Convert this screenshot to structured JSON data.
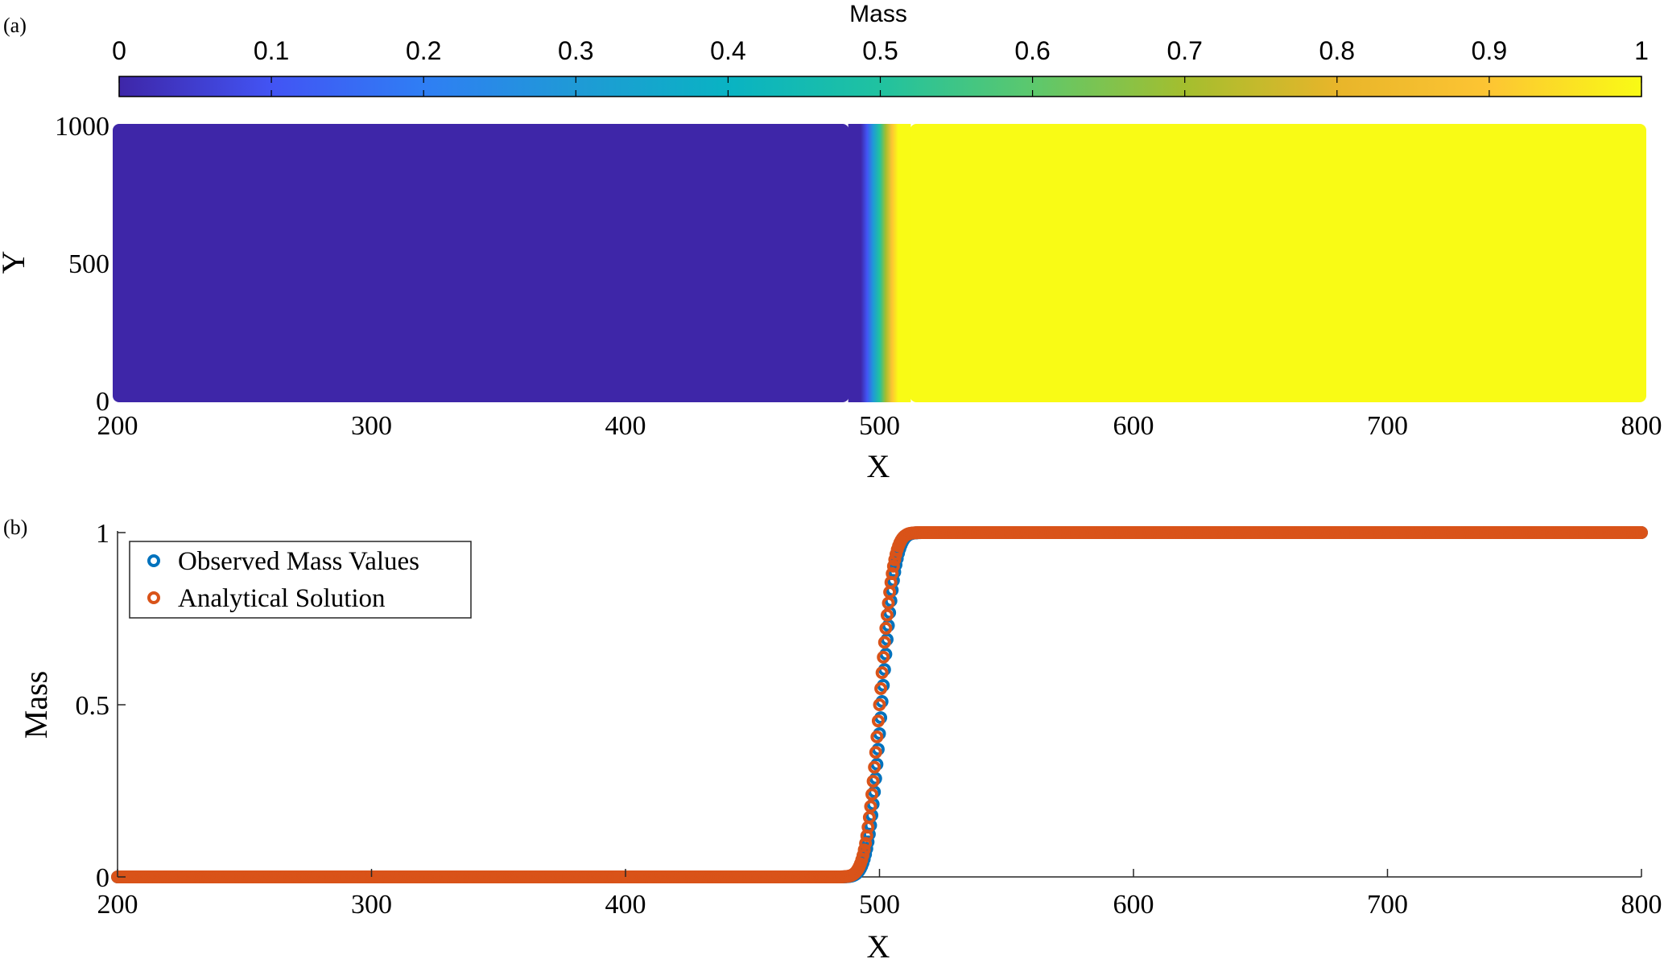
{
  "panels": {
    "a": {
      "label": "(a)",
      "colorbar": {
        "title": "Mass",
        "ticks": [
          "0",
          "0.1",
          "0.2",
          "0.3",
          "0.4",
          "0.5",
          "0.6",
          "0.7",
          "0.8",
          "0.9",
          "1"
        ],
        "range": [
          0,
          1
        ],
        "colormap": [
          "#3e26a8",
          "#4254f4",
          "#2f7ef4",
          "#1f9ad6",
          "#09b3c3",
          "#20c2a0",
          "#5cc86d",
          "#a4be2e",
          "#e8b52a",
          "#fdc533",
          "#f9fb15"
        ]
      },
      "xlabel": "X",
      "ylabel": "Y",
      "xticks": [
        "200",
        "300",
        "400",
        "500",
        "600",
        "700",
        "800"
      ],
      "yticks": [
        "0",
        "500",
        "1000"
      ]
    },
    "b": {
      "label": "(b)",
      "xlabel": "X",
      "ylabel": "Mass",
      "xticks": [
        "200",
        "300",
        "400",
        "500",
        "600",
        "700",
        "800"
      ],
      "yticks": [
        "0",
        "0.5",
        "1"
      ],
      "legend": [
        "Observed Mass Values",
        "Analytical Solution"
      ]
    }
  },
  "chart_data": [
    {
      "type": "heatmap",
      "x_range": [
        200,
        800
      ],
      "y_range": [
        0,
        1000
      ],
      "color_range": [
        0,
        1
      ],
      "front_x": 500,
      "front_width": 6,
      "low_value": 0,
      "high_value": 1,
      "low_color": "#3e26a8",
      "high_color": "#f9fb15"
    },
    {
      "type": "scatter",
      "xlim": [
        200,
        800
      ],
      "ylim": [
        0,
        1
      ],
      "series": [
        {
          "name": "Observed Mass Values",
          "color": "#0072bd",
          "profile": "erfc",
          "center": 500,
          "width": 6
        },
        {
          "name": "Analytical Solution",
          "color": "#d95319",
          "profile": "erfc",
          "center": 500,
          "width": 6
        }
      ],
      "legend_position": "top-left"
    }
  ]
}
